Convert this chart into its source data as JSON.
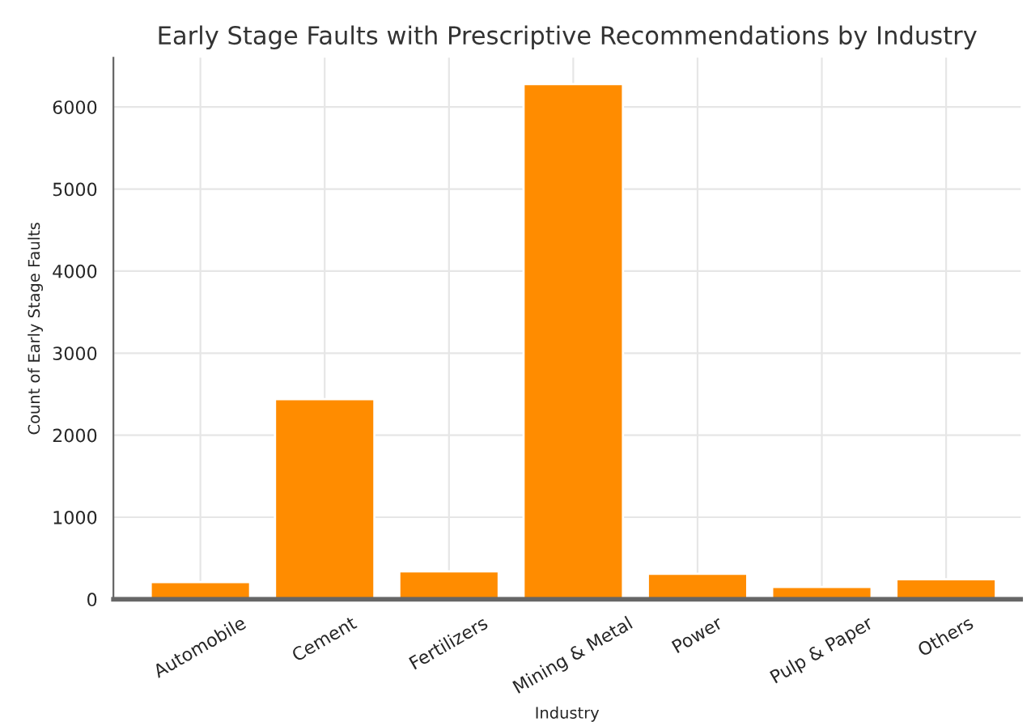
{
  "chart_data": {
    "type": "bar",
    "title": "Early Stage Faults with Prescriptive Recommendations by Industry",
    "xlabel": "Industry",
    "ylabel": "Count of Early Stage Faults",
    "categories": [
      "Automobile",
      "Cement",
      "Fertilizers",
      "Mining & Metal",
      "Power",
      "Pulp & Paper",
      "Others"
    ],
    "values": [
      210,
      2440,
      340,
      6280,
      310,
      150,
      245
    ],
    "color": "#ff8c00",
    "ylim": [
      0,
      6600
    ],
    "yticks": [
      0,
      1000,
      2000,
      3000,
      4000,
      5000,
      6000
    ],
    "grid": true
  }
}
